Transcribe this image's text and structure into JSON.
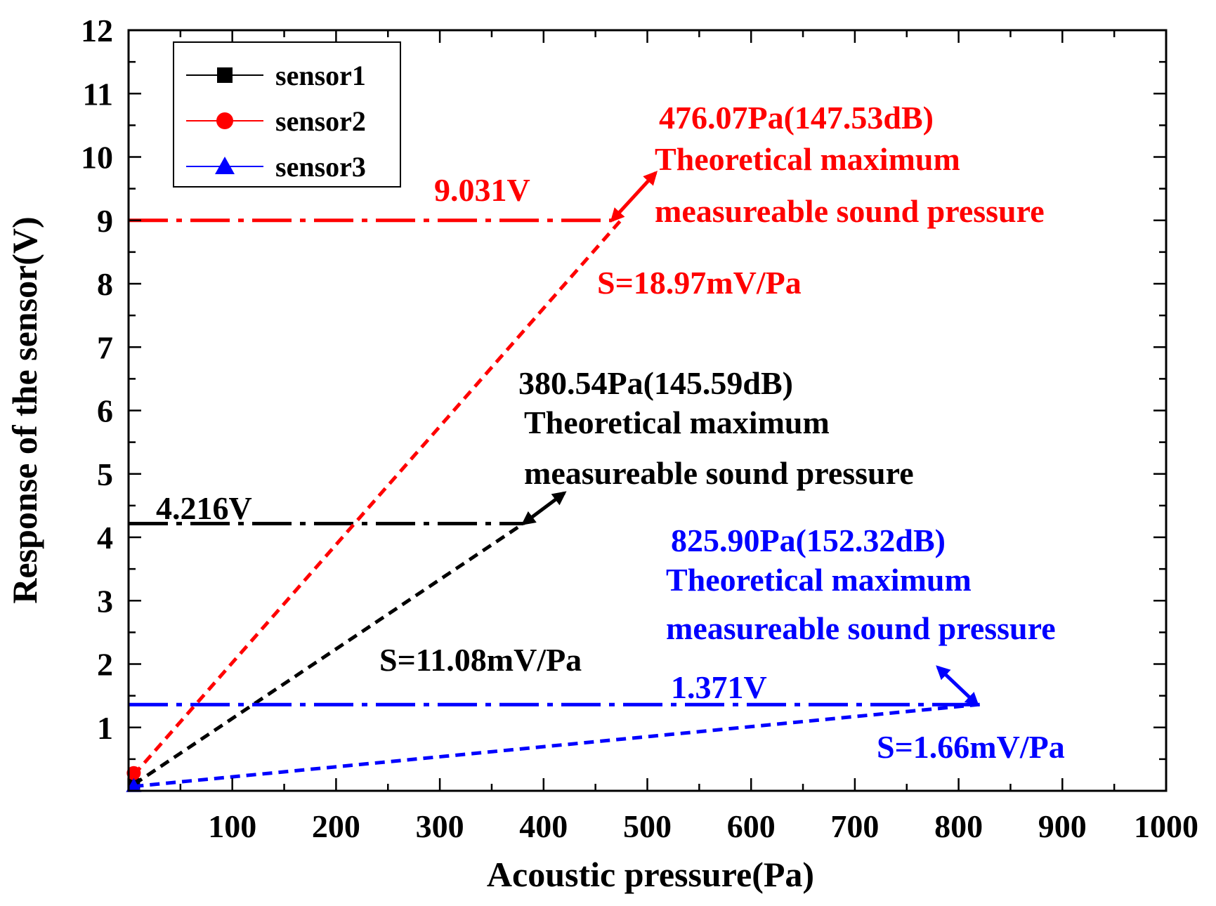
{
  "chart_data": {
    "type": "line",
    "xlabel": "Acoustic pressure(Pa)",
    "ylabel": "Response of the sensor(V)",
    "xlim": [
      0,
      1000
    ],
    "ylim": [
      0,
      12
    ],
    "xticks": [
      100,
      200,
      300,
      400,
      500,
      600,
      700,
      800,
      900,
      1000
    ],
    "yticks": [
      1,
      2,
      3,
      4,
      5,
      6,
      7,
      8,
      9,
      10,
      11,
      12
    ],
    "x_minor_step": 50,
    "y_minor_step": 0.5,
    "grid": false,
    "legend_position": "top-left",
    "legend": [
      "sensor1",
      "sensor2",
      "sensor3"
    ],
    "series": [
      {
        "name": "sensor1",
        "color": "#000000",
        "marker": "square",
        "sensitivity_label": "S=11.08mV/Pa",
        "fit_line": {
          "x": [
            5,
            380.54
          ],
          "y": [
            0.1,
            4.216
          ]
        },
        "marker_point": {
          "x": 5,
          "y": 0.1
        },
        "max_point": {
          "x": 380.54,
          "y": 4.216
        },
        "voltage_label": "4.216V",
        "pressure_label": "380.54Pa(145.59dB)",
        "annotation_line1": "Theoretical maximum",
        "annotation_line2": "measureable sound pressure",
        "arrow_to": {
          "x": 420,
          "y": 4.7
        }
      },
      {
        "name": "sensor2",
        "color": "#ff0000",
        "marker": "circle",
        "sensitivity_label": "S=18.97mV/Pa",
        "fit_line": {
          "x": [
            5,
            476.07
          ],
          "y": [
            0.25,
            9.031
          ]
        },
        "marker_point": {
          "x": 5,
          "y": 0.28
        },
        "max_point": {
          "x": 466,
          "y": 9.0
        },
        "voltage_label": "9.031V",
        "pressure_label": "476.07Pa(147.53dB)",
        "annotation_line1": "Theoretical maximum",
        "annotation_line2": "measureable sound pressure",
        "arrow_to": {
          "x": 508,
          "y": 9.75
        }
      },
      {
        "name": "sensor3",
        "color": "#0000ff",
        "marker": "triangle",
        "sensitivity_label": "S=1.66mV/Pa",
        "fit_line": {
          "x": [
            5,
            825.9
          ],
          "y": [
            0.07,
            1.371
          ]
        },
        "marker_point": {
          "x": 5,
          "y": 0.08
        },
        "max_point": {
          "x": 818,
          "y": 1.36
        },
        "voltage_label": "1.371V",
        "pressure_label": "825.90Pa(152.32dB)",
        "annotation_line1": "Theoretical maximum",
        "annotation_line2": "measureable sound pressure",
        "arrow_to": {
          "x": 780,
          "y": 1.95
        }
      }
    ]
  }
}
